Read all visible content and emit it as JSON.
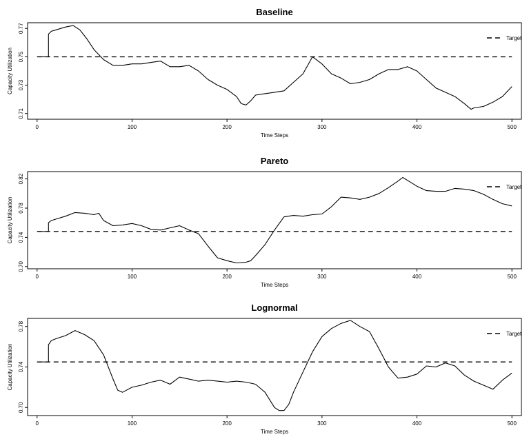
{
  "chart_data": [
    {
      "type": "line",
      "title": "Baseline",
      "xlabel": "Time Steps",
      "ylabel": "Capacity Utilization",
      "xlim": [
        -10,
        510
      ],
      "ylim": [
        0.706,
        0.774
      ],
      "xticks": [
        0,
        100,
        200,
        300,
        400,
        500
      ],
      "yticks": [
        0.71,
        0.73,
        0.75,
        0.77
      ],
      "ytick_labels": [
        "0.71",
        "0.73",
        "0.75",
        "0.77"
      ],
      "legend": {
        "position": "top-right",
        "entries": [
          {
            "label": "Target",
            "style": "dashed"
          }
        ]
      },
      "series": [
        {
          "style": "solid",
          "x": [
            0,
            12,
            12,
            15,
            20,
            30,
            38,
            45,
            52,
            60,
            70,
            80,
            90,
            100,
            110,
            120,
            130,
            140,
            150,
            160,
            170,
            180,
            190,
            200,
            210,
            215,
            220,
            225,
            230,
            240,
            250,
            260,
            270,
            280,
            290,
            300,
            310,
            320,
            330,
            340,
            350,
            360,
            370,
            380,
            390,
            400,
            410,
            420,
            430,
            440,
            450,
            457,
            460,
            470,
            480,
            490,
            500
          ],
          "values": [
            0.75,
            0.75,
            0.766,
            0.768,
            0.769,
            0.771,
            0.772,
            0.769,
            0.763,
            0.755,
            0.748,
            0.744,
            0.744,
            0.745,
            0.745,
            0.746,
            0.747,
            0.743,
            0.743,
            0.744,
            0.74,
            0.734,
            0.73,
            0.727,
            0.722,
            0.717,
            0.716,
            0.719,
            0.723,
            0.724,
            0.725,
            0.726,
            0.732,
            0.738,
            0.75,
            0.745,
            0.738,
            0.735,
            0.731,
            0.732,
            0.734,
            0.738,
            0.741,
            0.741,
            0.743,
            0.74,
            0.734,
            0.728,
            0.725,
            0.722,
            0.717,
            0.713,
            0.714,
            0.715,
            0.718,
            0.722,
            0.729
          ]
        },
        {
          "name": "Target",
          "style": "dashed",
          "x": [
            0,
            500
          ],
          "values": [
            0.75,
            0.75
          ]
        }
      ]
    },
    {
      "type": "line",
      "title": "Pareto",
      "xlabel": "Time Steps",
      "ylabel": "Capacity Utilization",
      "xlim": [
        -10,
        510
      ],
      "ylim": [
        0.697,
        0.83
      ],
      "xticks": [
        0,
        100,
        200,
        300,
        400,
        500
      ],
      "yticks": [
        0.7,
        0.74,
        0.78,
        0.82
      ],
      "ytick_labels": [
        "0.70",
        "0.74",
        "0.78",
        "0.82"
      ],
      "legend": {
        "position": "top-right",
        "entries": [
          {
            "label": "Target",
            "style": "dashed"
          }
        ]
      },
      "series": [
        {
          "style": "solid",
          "x": [
            0,
            12,
            12,
            15,
            20,
            30,
            40,
            50,
            60,
            65,
            70,
            80,
            90,
            100,
            110,
            120,
            130,
            140,
            150,
            160,
            170,
            180,
            190,
            200,
            210,
            220,
            225,
            230,
            240,
            250,
            260,
            270,
            280,
            290,
            300,
            310,
            320,
            330,
            340,
            350,
            360,
            370,
            380,
            385,
            390,
            400,
            410,
            420,
            430,
            440,
            450,
            460,
            470,
            480,
            490,
            500
          ],
          "values": [
            0.748,
            0.748,
            0.76,
            0.763,
            0.765,
            0.769,
            0.774,
            0.773,
            0.771,
            0.773,
            0.763,
            0.756,
            0.757,
            0.759,
            0.756,
            0.751,
            0.75,
            0.753,
            0.756,
            0.75,
            0.745,
            0.728,
            0.712,
            0.708,
            0.705,
            0.706,
            0.708,
            0.715,
            0.73,
            0.75,
            0.768,
            0.77,
            0.769,
            0.771,
            0.772,
            0.782,
            0.795,
            0.794,
            0.792,
            0.795,
            0.8,
            0.808,
            0.817,
            0.822,
            0.818,
            0.81,
            0.804,
            0.803,
            0.803,
            0.807,
            0.806,
            0.804,
            0.799,
            0.792,
            0.786,
            0.783
          ]
        },
        {
          "name": "Target",
          "style": "dashed",
          "x": [
            0,
            500
          ],
          "values": [
            0.748,
            0.748
          ]
        }
      ]
    },
    {
      "type": "line",
      "title": "Lognormal",
      "xlabel": "Time Steps",
      "ylabel": "Capacity Utilization",
      "xlim": [
        -10,
        510
      ],
      "ylim": [
        0.692,
        0.788
      ],
      "xticks": [
        0,
        100,
        200,
        300,
        400,
        500
      ],
      "yticks": [
        0.7,
        0.74,
        0.78
      ],
      "ytick_labels": [
        "0.70",
        "0.74",
        "0.78"
      ],
      "legend": {
        "position": "top-right",
        "entries": [
          {
            "label": "Target",
            "style": "dashed"
          }
        ]
      },
      "series": [
        {
          "style": "solid",
          "x": [
            0,
            12,
            12,
            15,
            20,
            30,
            40,
            50,
            60,
            70,
            80,
            85,
            90,
            100,
            110,
            120,
            130,
            140,
            150,
            160,
            170,
            180,
            190,
            200,
            210,
            220,
            230,
            240,
            250,
            255,
            260,
            265,
            270,
            280,
            290,
            300,
            310,
            320,
            330,
            340,
            350,
            360,
            370,
            380,
            390,
            400,
            410,
            420,
            430,
            440,
            450,
            460,
            470,
            480,
            490,
            500
          ],
          "values": [
            0.745,
            0.745,
            0.762,
            0.766,
            0.768,
            0.771,
            0.776,
            0.772,
            0.766,
            0.752,
            0.728,
            0.717,
            0.715,
            0.72,
            0.722,
            0.725,
            0.727,
            0.723,
            0.73,
            0.728,
            0.726,
            0.727,
            0.726,
            0.725,
            0.726,
            0.725,
            0.723,
            0.715,
            0.7,
            0.697,
            0.697,
            0.703,
            0.715,
            0.735,
            0.755,
            0.77,
            0.778,
            0.783,
            0.786,
            0.78,
            0.775,
            0.758,
            0.74,
            0.729,
            0.73,
            0.733,
            0.741,
            0.74,
            0.744,
            0.741,
            0.732,
            0.726,
            0.722,
            0.718,
            0.727,
            0.734
          ]
        },
        {
          "name": "Target",
          "style": "dashed",
          "x": [
            0,
            500
          ],
          "values": [
            0.745,
            0.745
          ]
        }
      ]
    }
  ]
}
